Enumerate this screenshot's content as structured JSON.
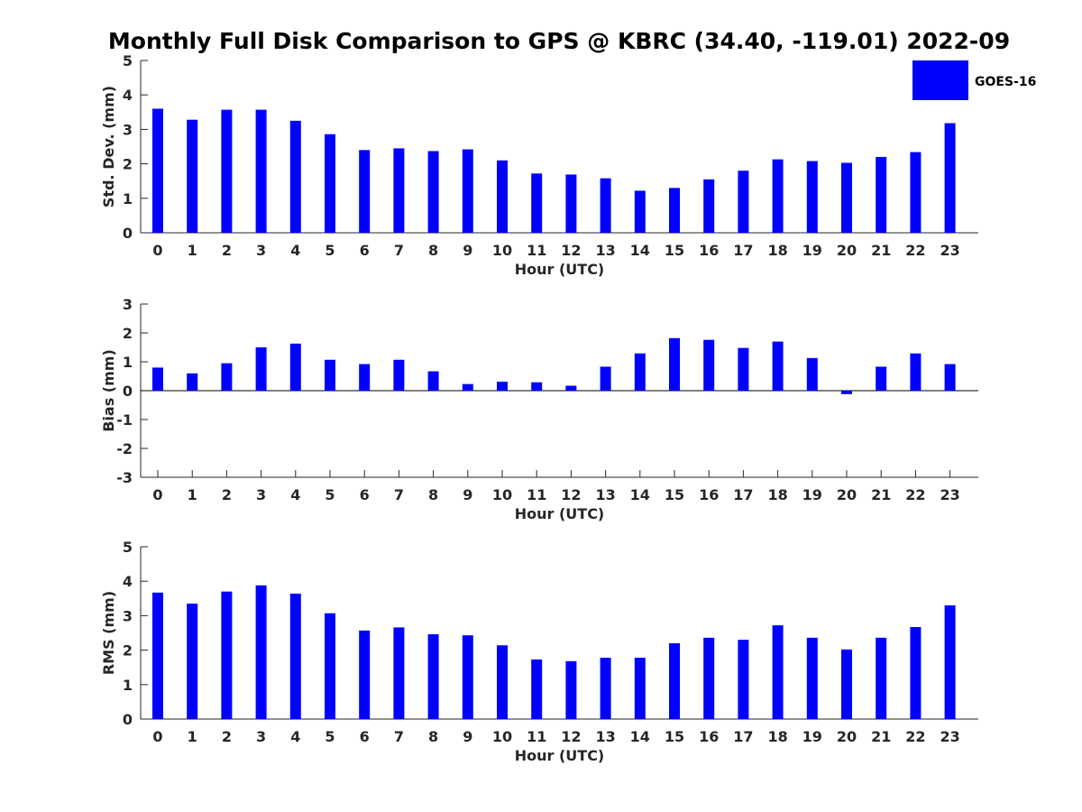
{
  "chart_data": {
    "title": "Monthly Full Disk Comparison to GPS @ KBRC (34.40, -119.01) 2022-09",
    "legend": {
      "label": "GOES-16",
      "color": "#0000ff",
      "placement": "top-right"
    },
    "bar_color": "#0000ff",
    "categories": [
      "0",
      "1",
      "2",
      "3",
      "4",
      "5",
      "6",
      "7",
      "8",
      "9",
      "10",
      "11",
      "12",
      "13",
      "14",
      "15",
      "16",
      "17",
      "18",
      "19",
      "20",
      "21",
      "22",
      "23"
    ],
    "panels": [
      {
        "type": "bar",
        "xlabel": "Hour (UTC)",
        "ylabel": "Std. Dev. (mm)",
        "ylim": [
          0,
          5
        ],
        "yticks": [
          "0",
          "1",
          "2",
          "3",
          "4",
          "5"
        ],
        "series": [
          {
            "name": "GOES-16",
            "values": [
              3.6,
              3.28,
              3.57,
              3.57,
              3.25,
              2.86,
              2.4,
              2.45,
              2.37,
              2.42,
              2.1,
              1.72,
              1.69,
              1.58,
              1.22,
              1.3,
              1.55,
              1.8,
              2.13,
              2.08,
              2.03,
              2.2,
              2.34,
              3.18
            ]
          }
        ]
      },
      {
        "type": "bar",
        "xlabel": "Hour (UTC)",
        "ylabel": "Bias (mm)",
        "ylim": [
          -3,
          3
        ],
        "yticks": [
          "-3",
          "-2",
          "-1",
          "0",
          "1",
          "2",
          "3"
        ],
        "series": [
          {
            "name": "GOES-16",
            "values": [
              0.8,
              0.6,
              0.95,
              1.5,
              1.63,
              1.07,
              0.92,
              1.07,
              0.67,
              0.23,
              0.31,
              0.29,
              0.17,
              0.83,
              1.29,
              1.82,
              1.76,
              1.48,
              1.7,
              1.13,
              -0.12,
              0.83,
              1.29,
              0.92
            ]
          }
        ]
      },
      {
        "type": "bar",
        "xlabel": "Hour (UTC)",
        "ylabel": "RMS (mm)",
        "ylim": [
          0,
          5
        ],
        "yticks": [
          "0",
          "1",
          "2",
          "3",
          "4",
          "5"
        ],
        "series": [
          {
            "name": "GOES-16",
            "values": [
              3.67,
              3.35,
              3.7,
              3.88,
              3.64,
              3.07,
              2.57,
              2.66,
              2.46,
              2.43,
              2.14,
              1.73,
              1.68,
              1.78,
              1.78,
              2.2,
              2.36,
              2.3,
              2.72,
              2.36,
              2.02,
              2.36,
              2.67,
              3.3
            ]
          }
        ]
      }
    ]
  }
}
